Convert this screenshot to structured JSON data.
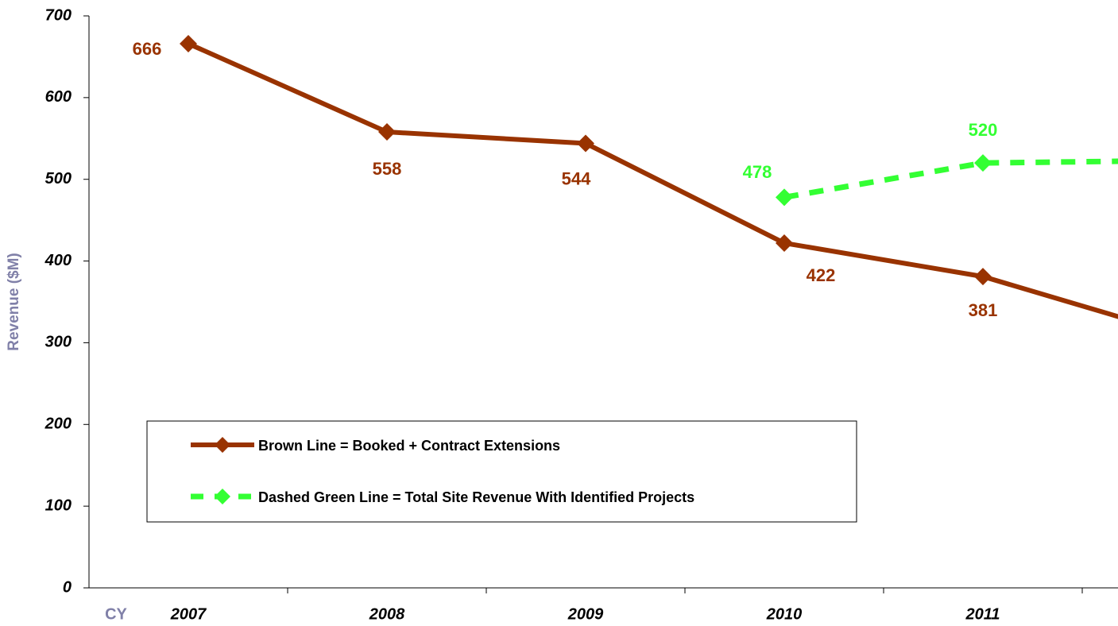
{
  "chart_data": {
    "type": "line",
    "y_label": "Revenue ($M)",
    "x_label": "CY",
    "categories": [
      "2007",
      "2008",
      "2009",
      "2010",
      "2011",
      null
    ],
    "series": [
      {
        "name": "Brown Line = Booked + Contract Extensions",
        "color": "#993300",
        "dashed": false,
        "values": [
          666,
          558,
          544,
          422,
          381,
          309
        ]
      },
      {
        "name": "Dashed Green Line = Total Site Revenue With Identified Projects",
        "color": "#33ff33",
        "dashed": true,
        "values": [
          null,
          null,
          null,
          478,
          520,
          523
        ]
      }
    ],
    "ylim": [
      0,
      700
    ],
    "yticks": [
      0,
      100,
      200,
      300,
      400,
      500,
      600,
      700
    ],
    "grid": false
  }
}
